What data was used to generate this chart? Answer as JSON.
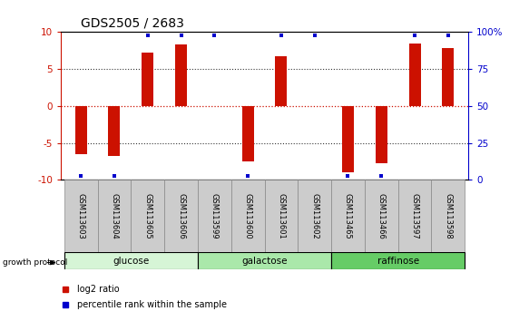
{
  "title": "GDS2505 / 2683",
  "samples": [
    "GSM113603",
    "GSM113604",
    "GSM113605",
    "GSM113606",
    "GSM113599",
    "GSM113600",
    "GSM113601",
    "GSM113602",
    "GSM113465",
    "GSM113466",
    "GSM113597",
    "GSM113598"
  ],
  "log2_ratios": [
    -6.5,
    -6.8,
    7.2,
    8.3,
    0.0,
    -7.5,
    6.7,
    0.0,
    -9.0,
    -7.8,
    8.5,
    7.8
  ],
  "percentile_ranks_high": [
    false,
    false,
    true,
    true,
    true,
    false,
    true,
    true,
    false,
    false,
    true,
    true
  ],
  "groups": [
    {
      "label": "glucose",
      "start": 0,
      "end": 4,
      "color": "#d6f5d6"
    },
    {
      "label": "galactose",
      "start": 4,
      "end": 8,
      "color": "#aae8aa"
    },
    {
      "label": "raffinose",
      "start": 8,
      "end": 12,
      "color": "#66cc66"
    }
  ],
  "ylim": [
    -10,
    10
  ],
  "bar_color": "#cc1100",
  "dot_color": "#0000cc",
  "zero_line_color": "#cc1100",
  "grid_color": "#333333",
  "right_axis_color": "#0000cc",
  "left_axis_color": "#cc1100",
  "background_color": "#ffffff",
  "bar_width": 0.35,
  "sample_box_color": "#cccccc",
  "sample_box_edge": "#888888"
}
